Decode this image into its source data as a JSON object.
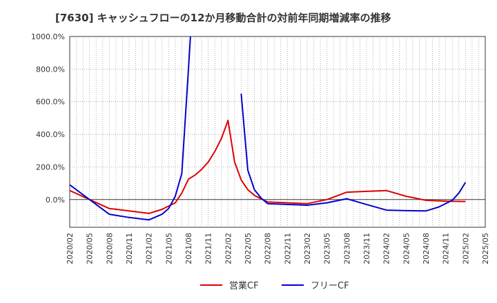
{
  "chart_data": {
    "type": "line",
    "title": "[7630]  キャッシュフローの12か月移動合計の対前年同期増減率の推移",
    "xlabel": "",
    "ylabel": "",
    "ylim": [
      -170,
      1000
    ],
    "y_ticks": [
      0,
      200,
      400,
      600,
      800,
      1000
    ],
    "y_tick_labels": [
      "0.0%",
      "200.0%",
      "400.0%",
      "600.0%",
      "800.0%",
      "1000.0%"
    ],
    "x_tick_labels": [
      "2020/02",
      "2020/05",
      "2020/08",
      "2020/11",
      "2021/02",
      "2021/05",
      "2021/08",
      "2021/11",
      "2022/02",
      "2022/05",
      "2022/08",
      "2022/11",
      "2023/02",
      "2023/05",
      "2023/08",
      "2023/11",
      "2024/02",
      "2024/05",
      "2024/08",
      "2024/11",
      "2025/02",
      "2025/05"
    ],
    "x_start": "2020/02",
    "x_months_total": 63,
    "grid": true,
    "legend_position": "bottom",
    "series": [
      {
        "name": "営業CF",
        "color": "#dd0000",
        "points": [
          [
            0,
            55
          ],
          [
            3,
            0
          ],
          [
            6,
            -55
          ],
          [
            9,
            -70
          ],
          [
            12,
            -85
          ],
          [
            14,
            -60
          ],
          [
            16,
            -20
          ],
          [
            17,
            40
          ],
          [
            18,
            125
          ],
          [
            19,
            150
          ],
          [
            20,
            185
          ],
          [
            21,
            230
          ],
          [
            22,
            295
          ],
          [
            23,
            375
          ],
          [
            24,
            485
          ],
          [
            25,
            230
          ],
          [
            26,
            120
          ],
          [
            27,
            60
          ],
          [
            28,
            25
          ],
          [
            30,
            -15
          ],
          [
            33,
            -20
          ],
          [
            36,
            -25
          ],
          [
            39,
            0
          ],
          [
            42,
            45
          ],
          [
            45,
            50
          ],
          [
            48,
            55
          ],
          [
            51,
            20
          ],
          [
            54,
            -5
          ],
          [
            57,
            -10
          ],
          [
            60,
            -12
          ]
        ]
      },
      {
        "name": "フリーCF",
        "color": "#0000cc",
        "points": [
          [
            0,
            90
          ],
          [
            3,
            0
          ],
          [
            6,
            -90
          ],
          [
            9,
            -110
          ],
          [
            12,
            -125
          ],
          [
            14,
            -90
          ],
          [
            15,
            -55
          ],
          [
            16,
            20
          ],
          [
            17,
            160
          ],
          [
            18,
            800
          ],
          [
            18.3,
            1000
          ],
          null,
          [
            26,
            650
          ],
          [
            27,
            180
          ],
          [
            28,
            60
          ],
          [
            29,
            10
          ],
          [
            30,
            -25
          ],
          [
            33,
            -30
          ],
          [
            36,
            -35
          ],
          [
            39,
            -20
          ],
          [
            42,
            5
          ],
          [
            45,
            -30
          ],
          [
            48,
            -65
          ],
          [
            51,
            -68
          ],
          [
            54,
            -70
          ],
          [
            56,
            -45
          ],
          [
            58,
            -5
          ],
          [
            59,
            40
          ],
          [
            60,
            105
          ]
        ]
      }
    ]
  }
}
